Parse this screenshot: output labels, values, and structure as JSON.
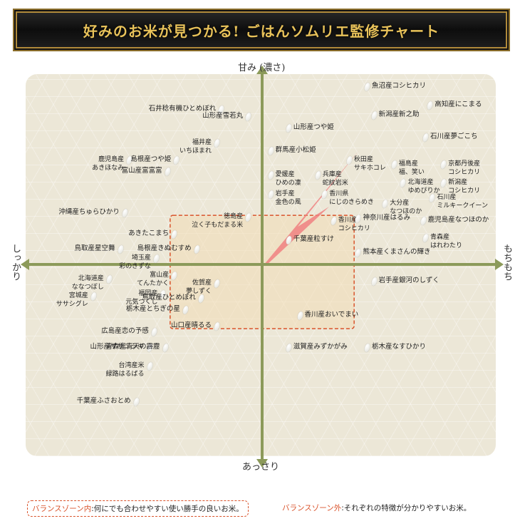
{
  "title": "好みのお米が見つかる! ごはんソムリエ監修チャート",
  "axes": {
    "top": "甘み (濃さ)",
    "bottom": "あっさり",
    "left": "しっかり",
    "right": "もちもち"
  },
  "legend": {
    "in_title": "バランスゾーン内",
    "in_text": ":何にでも合わせやすい使い勝手の良いお米。",
    "out_title": "バランスゾーン外",
    "out_text": ":それぞれの特徴が分かりやすいお米。"
  },
  "colors": {
    "axis": "#8c9a5a",
    "zone_fill": "#f2ddb6",
    "zone_border": "#d9532b",
    "arrow": "#f08080",
    "banner_text": "#e8c25a"
  },
  "chart_data": {
    "type": "scatter",
    "xlabel_left": "しっかり",
    "xlabel_right": "もちもち",
    "ylabel_top": "甘み (濃さ)",
    "ylabel_bottom": "あっさり",
    "xlim": [
      -10,
      10
    ],
    "ylim": [
      -10,
      10
    ],
    "zone": {
      "x": [
        -4.1,
        4.1
      ],
      "y": [
        -3.4,
        2.6
      ]
    },
    "points": [
      {
        "name": "魚沼産コシヒカリ",
        "x": 4.7,
        "y": 9.4
      },
      {
        "name": "高知産にこまる",
        "x": 7.5,
        "y": 8.4
      },
      {
        "name": "新潟産新之助",
        "x": 5.0,
        "y": 7.9
      },
      {
        "name": "石井稔有機ひとめぼれ",
        "x": -1.8,
        "y": 8.2
      },
      {
        "name": "山形産雪若丸",
        "x": -0.6,
        "y": 7.8
      },
      {
        "name": "山形産つや姫",
        "x": 1.2,
        "y": 7.2
      },
      {
        "name": "石川産夢ごこち",
        "x": 7.3,
        "y": 6.7
      },
      {
        "name": "福井産\nいちほまれ",
        "x": -2.0,
        "y": 6.4
      },
      {
        "name": "群馬産小松姫",
        "x": 0.4,
        "y": 6.0
      },
      {
        "name": "鹿児島産\nあきほなみ",
        "x": -5.9,
        "y": 5.5
      },
      {
        "name": "島根産つや姫",
        "x": -3.8,
        "y": 5.5
      },
      {
        "name": "富山産富富富",
        "x": -4.2,
        "y": 4.9
      },
      {
        "name": "秋田産\nサキホコレ",
        "x": 3.9,
        "y": 5.5
      },
      {
        "name": "福島産\n福、笑い",
        "x": 5.9,
        "y": 5.3
      },
      {
        "name": "京都丹後産\nコシヒカリ",
        "x": 8.1,
        "y": 5.3
      },
      {
        "name": "愛媛産\nひめの凜",
        "x": 0.4,
        "y": 4.7
      },
      {
        "name": "兵庫産\n蛇紋岩米",
        "x": 2.5,
        "y": 4.7
      },
      {
        "name": "北海道産\nゆめぴりか",
        "x": 6.3,
        "y": 4.3
      },
      {
        "name": "新潟産\nコシヒカリ",
        "x": 8.1,
        "y": 4.3
      },
      {
        "name": "岩手産\n金色の風",
        "x": 0.4,
        "y": 3.7
      },
      {
        "name": "香川県\nにじのきらめき",
        "x": 2.8,
        "y": 3.7
      },
      {
        "name": "石川産\nミルキークイーン",
        "x": 7.6,
        "y": 3.5
      },
      {
        "name": "大分産\nなつほのか",
        "x": 5.5,
        "y": 3.2
      },
      {
        "name": "沖縄産ちゅらひかり",
        "x": -6.1,
        "y": 2.7
      },
      {
        "name": "徳島産\n泣く子もだまる米",
        "x": -0.6,
        "y": 2.5
      },
      {
        "name": "香川産\nコシヒカリ",
        "x": 3.2,
        "y": 2.3
      },
      {
        "name": "神奈川産はるみ",
        "x": 4.3,
        "y": 2.4
      },
      {
        "name": "鹿児島産なつほのか",
        "x": 7.2,
        "y": 2.3
      },
      {
        "name": "あきたこまち",
        "x": -3.9,
        "y": 1.6
      },
      {
        "name": "千葉産粒すけ",
        "x": 1.2,
        "y": 1.3
      },
      {
        "name": "青森産\nはれわたり",
        "x": 7.3,
        "y": 1.4
      },
      {
        "name": "鳥取産星空舞",
        "x": -6.3,
        "y": 0.8
      },
      {
        "name": "島根産きぬむすめ",
        "x": -2.9,
        "y": 0.8
      },
      {
        "name": "熊本産くまさんの輝き",
        "x": 4.3,
        "y": 0.6
      },
      {
        "name": "埼玉産\n彩のきずな",
        "x": -4.7,
        "y": 0.3
      },
      {
        "name": "北海道産\nななつぼし",
        "x": -6.8,
        "y": -0.8
      },
      {
        "name": "富山産\nてんたかく",
        "x": -3.9,
        "y": -0.6
      },
      {
        "name": "佐賀産\n夢しずく",
        "x": -2.0,
        "y": -1.0
      },
      {
        "name": "岩手産銀河のしずく",
        "x": 5.0,
        "y": -0.9
      },
      {
        "name": "福岡産\n元気つくし",
        "x": -4.4,
        "y": -1.6
      },
      {
        "name": "鳥取産ひとめぼれ",
        "x": -2.7,
        "y": -1.8
      },
      {
        "name": "宮城産\nササシグレ",
        "x": -7.5,
        "y": -1.7
      },
      {
        "name": "栃木産とちぎの星",
        "x": -3.4,
        "y": -2.4
      },
      {
        "name": "香川産おいでまい",
        "x": 1.7,
        "y": -2.7
      },
      {
        "name": "山口産晴るる",
        "x": -2.0,
        "y": -3.3
      },
      {
        "name": "広島産恋の予感",
        "x": -4.8,
        "y": -3.6
      },
      {
        "name": "山形産ササニシキ",
        "x": -5.0,
        "y": -4.4
      },
      {
        "name": "青森産青天の霹靂",
        "x": -4.3,
        "y": -4.4
      },
      {
        "name": "滋賀産みずかがみ",
        "x": 1.2,
        "y": -4.4
      },
      {
        "name": "栃木産なすひかり",
        "x": 4.7,
        "y": -4.4
      },
      {
        "name": "台湾産米\n緑路はるばる",
        "x": -5.0,
        "y": -5.4
      },
      {
        "name": "千葉産ふさおとめ",
        "x": -5.6,
        "y": -7.3
      }
    ]
  }
}
